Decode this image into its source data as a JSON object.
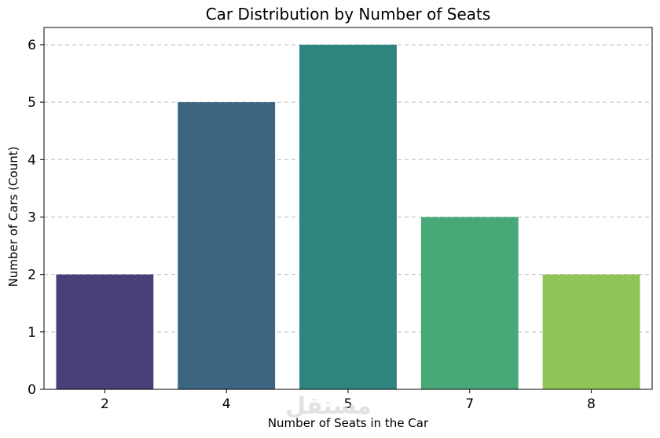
{
  "watermark": "مستقل",
  "chart_data": {
    "type": "bar",
    "title": "Car Distribution by Number of Seats",
    "xlabel": "Number of Seats in the Car",
    "ylabel": "Number of Cars (Count)",
    "categories": [
      "2",
      "4",
      "5",
      "7",
      "8"
    ],
    "values": [
      2,
      5,
      6,
      3,
      2
    ],
    "colors": [
      "#4b3f7a",
      "#3c6582",
      "#2e857f",
      "#48a877",
      "#8fc556"
    ],
    "ylim": [
      0,
      6.3
    ],
    "yticks": [
      0,
      1,
      2,
      3,
      4,
      5,
      6
    ],
    "grid": "y-dashed",
    "legend": "none"
  }
}
